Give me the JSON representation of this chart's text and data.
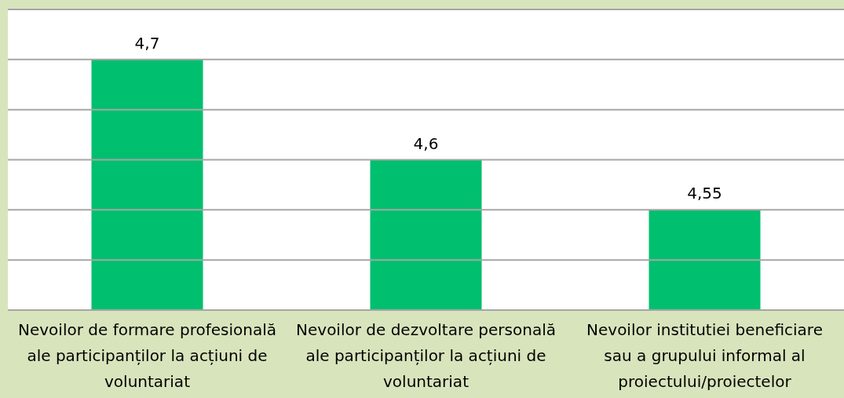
{
  "chart_data": {
    "type": "bar",
    "categories": [
      "Nevoilor de formare profesională ale participanților la acțiuni de voluntariat",
      "Nevoilor de dezvoltare personală ale participanților la acțiuni de voluntariat",
      "Nevoilor institutiei beneficiare sau a grupului informal al proiectului/proiectelor"
    ],
    "values": [
      4.7,
      4.6,
      4.55
    ],
    "value_labels": [
      "4,7",
      "4,6",
      "4,55"
    ],
    "color": "#00bf6f",
    "ylim": [
      4.45,
      4.75
    ],
    "yticks": [
      {
        "value": 4.45,
        "label": null
      },
      {
        "value": 4.5,
        "label": null
      },
      {
        "value": 4.55,
        "label": null
      },
      {
        "value": 4.6,
        "label": null
      },
      {
        "value": 4.65,
        "label": null
      },
      {
        "value": 4.7,
        "label": null
      },
      {
        "value": 4.75,
        "label": null
      }
    ],
    "tick_labels": "x",
    "grid": "y"
  }
}
